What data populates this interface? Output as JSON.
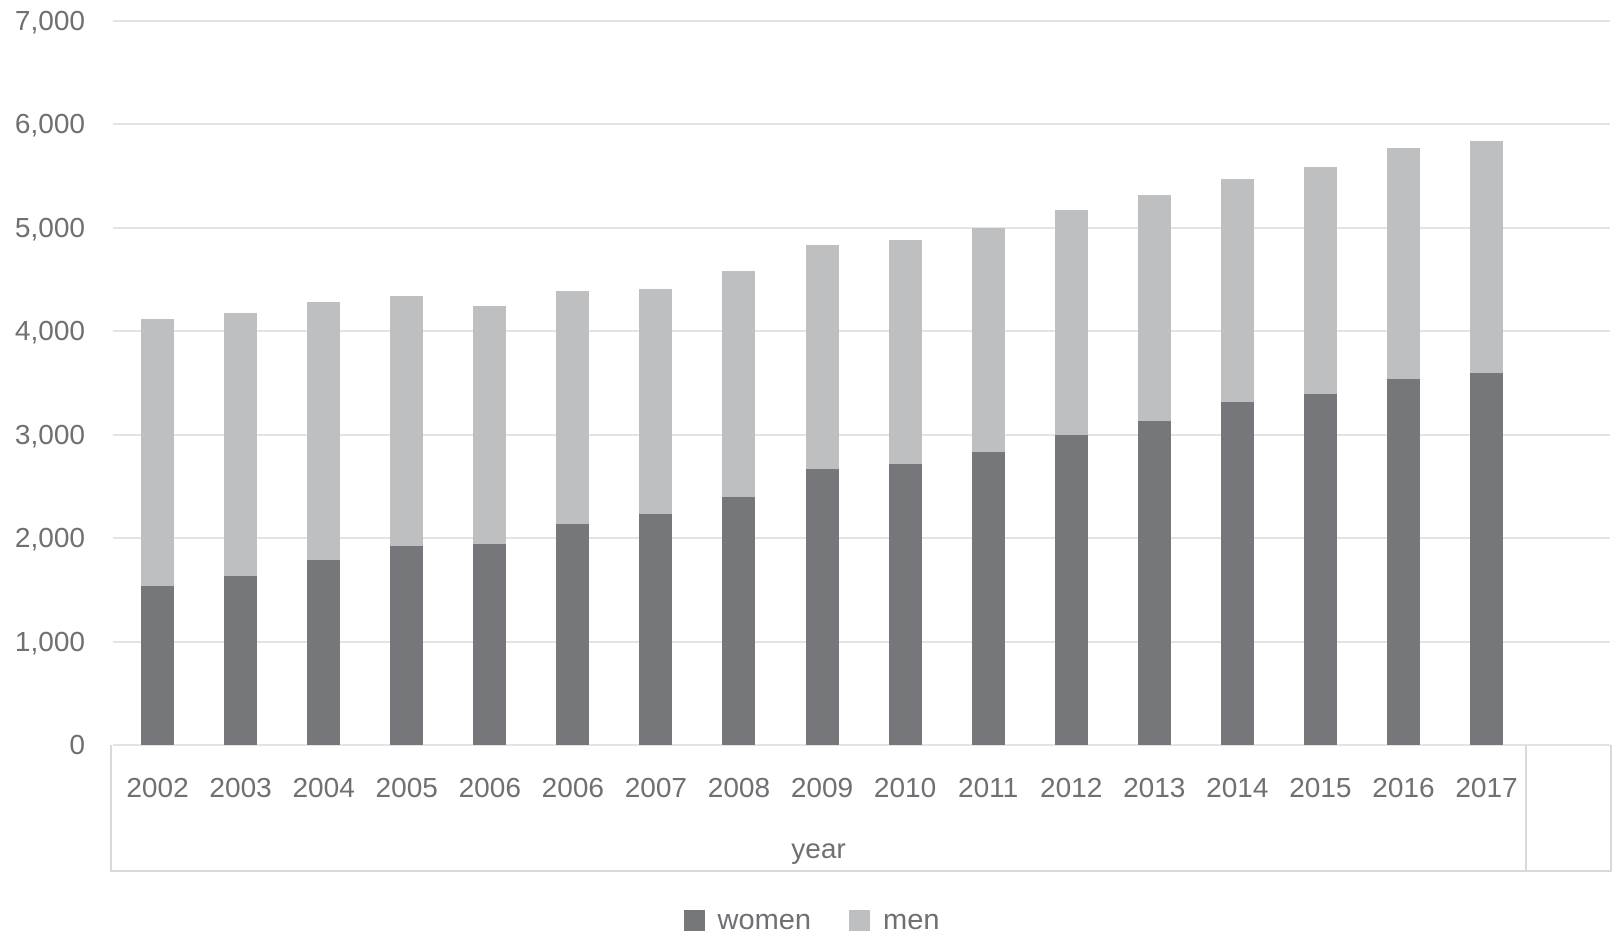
{
  "chart_data": {
    "type": "bar",
    "stacked": true,
    "title": "",
    "xlabel": "year",
    "ylabel": "",
    "categories": [
      "2002",
      "2003",
      "2004",
      "2005",
      "2006",
      "2006",
      "2007",
      "2008",
      "2009",
      "2010",
      "2011",
      "2012",
      "2013",
      "2014",
      "2015",
      "2016",
      "2017"
    ],
    "series": [
      {
        "name": "women",
        "color": "#76777b",
        "values": [
          1540,
          1630,
          1790,
          1920,
          1940,
          2140,
          2230,
          2400,
          2670,
          2720,
          2830,
          3000,
          3130,
          3320,
          3390,
          3540,
          3600
        ]
      },
      {
        "name": "men",
        "color": "#bdbfc1",
        "values": [
          2580,
          2550,
          2490,
          2420,
          2300,
          2250,
          2180,
          2180,
          2160,
          2160,
          2170,
          2170,
          2190,
          2150,
          2200,
          2230,
          2240
        ]
      }
    ],
    "stacked_totals": [
      4120,
      4180,
      4280,
      4340,
      4240,
      4390,
      4410,
      4580,
      4830,
      4880,
      5000,
      5170,
      5320,
      5470,
      5590,
      5770,
      5840
    ],
    "ylim": [
      0,
      7000
    ],
    "ytick_interval": 1000,
    "ytick_labels": [
      "0",
      "1,000",
      "2,000",
      "3,000",
      "4,000",
      "5,000",
      "6,000",
      "7,000"
    ],
    "grid": true,
    "legend_position": "bottom",
    "has_extra_blank_category": true
  },
  "colors": {
    "background": "#ffffff",
    "women_bar": "#76777b",
    "men_bar": "#bdbfc1",
    "gridline": "#e4e4e4",
    "axis_box_border": "#d9d9d9",
    "text": "#6e7073"
  }
}
